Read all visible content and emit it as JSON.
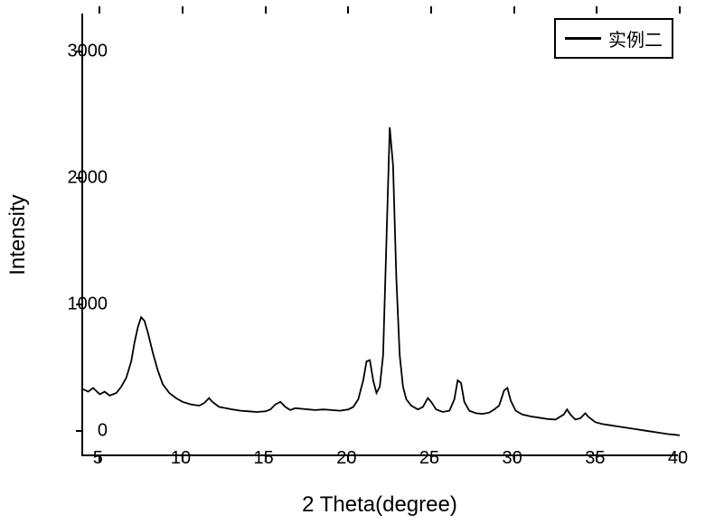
{
  "chart": {
    "type": "line",
    "background_color": "#ffffff",
    "line_color": "#000000",
    "line_width": 1.8,
    "border_color": "#000000",
    "x_axis": {
      "label": "2 Theta(degree)",
      "label_fontsize": 24,
      "tick_fontsize": 20,
      "xlim": [
        4,
        40
      ],
      "ticks": [
        5,
        10,
        15,
        20,
        25,
        30,
        35,
        40
      ]
    },
    "y_axis": {
      "label": "Intensity",
      "label_fontsize": 24,
      "tick_fontsize": 20,
      "ylim": [
        -200,
        3300
      ],
      "ticks": [
        0,
        1000,
        2000,
        3000
      ]
    },
    "legend": {
      "position": "top-right",
      "border_color": "#000000",
      "items": [
        {
          "label": "实例二",
          "color": "#000000"
        }
      ]
    },
    "series": [
      {
        "name": "实例二",
        "color": "#000000",
        "data": [
          [
            4.0,
            330
          ],
          [
            4.3,
            310
          ],
          [
            4.6,
            340
          ],
          [
            5.0,
            290
          ],
          [
            5.3,
            310
          ],
          [
            5.6,
            280
          ],
          [
            6.0,
            300
          ],
          [
            6.3,
            350
          ],
          [
            6.6,
            420
          ],
          [
            6.9,
            550
          ],
          [
            7.1,
            700
          ],
          [
            7.3,
            820
          ],
          [
            7.5,
            900
          ],
          [
            7.7,
            870
          ],
          [
            7.9,
            780
          ],
          [
            8.2,
            620
          ],
          [
            8.5,
            480
          ],
          [
            8.8,
            370
          ],
          [
            9.2,
            300
          ],
          [
            9.6,
            260
          ],
          [
            10.0,
            230
          ],
          [
            10.5,
            210
          ],
          [
            11.0,
            200
          ],
          [
            11.3,
            220
          ],
          [
            11.6,
            260
          ],
          [
            11.8,
            230
          ],
          [
            12.2,
            190
          ],
          [
            12.6,
            180
          ],
          [
            13.0,
            170
          ],
          [
            13.5,
            160
          ],
          [
            14.0,
            155
          ],
          [
            14.5,
            150
          ],
          [
            15.0,
            155
          ],
          [
            15.3,
            170
          ],
          [
            15.6,
            210
          ],
          [
            15.9,
            230
          ],
          [
            16.2,
            190
          ],
          [
            16.5,
            165
          ],
          [
            16.8,
            180
          ],
          [
            17.2,
            175
          ],
          [
            17.6,
            170
          ],
          [
            18.0,
            165
          ],
          [
            18.5,
            170
          ],
          [
            19.0,
            165
          ],
          [
            19.5,
            160
          ],
          [
            20.0,
            170
          ],
          [
            20.3,
            190
          ],
          [
            20.6,
            250
          ],
          [
            20.9,
            400
          ],
          [
            21.1,
            550
          ],
          [
            21.3,
            560
          ],
          [
            21.5,
            400
          ],
          [
            21.7,
            300
          ],
          [
            21.9,
            350
          ],
          [
            22.1,
            600
          ],
          [
            22.3,
            1500
          ],
          [
            22.5,
            2400
          ],
          [
            22.7,
            2100
          ],
          [
            22.9,
            1200
          ],
          [
            23.1,
            600
          ],
          [
            23.3,
            350
          ],
          [
            23.5,
            250
          ],
          [
            23.8,
            200
          ],
          [
            24.2,
            170
          ],
          [
            24.5,
            190
          ],
          [
            24.8,
            260
          ],
          [
            25.0,
            230
          ],
          [
            25.3,
            170
          ],
          [
            25.7,
            150
          ],
          [
            26.1,
            160
          ],
          [
            26.4,
            250
          ],
          [
            26.6,
            400
          ],
          [
            26.8,
            380
          ],
          [
            27.0,
            230
          ],
          [
            27.3,
            160
          ],
          [
            27.7,
            140
          ],
          [
            28.1,
            135
          ],
          [
            28.5,
            145
          ],
          [
            28.8,
            170
          ],
          [
            29.1,
            200
          ],
          [
            29.4,
            320
          ],
          [
            29.6,
            340
          ],
          [
            29.8,
            240
          ],
          [
            30.1,
            160
          ],
          [
            30.5,
            130
          ],
          [
            31.0,
            115
          ],
          [
            31.5,
            105
          ],
          [
            32.0,
            95
          ],
          [
            32.5,
            90
          ],
          [
            33.0,
            130
          ],
          [
            33.2,
            170
          ],
          [
            33.4,
            130
          ],
          [
            33.7,
            90
          ],
          [
            34.0,
            100
          ],
          [
            34.3,
            140
          ],
          [
            34.5,
            110
          ],
          [
            34.9,
            70
          ],
          [
            35.3,
            55
          ],
          [
            35.8,
            45
          ],
          [
            36.3,
            35
          ],
          [
            36.8,
            25
          ],
          [
            37.3,
            15
          ],
          [
            37.8,
            5
          ],
          [
            38.3,
            -5
          ],
          [
            38.8,
            -15
          ],
          [
            39.3,
            -25
          ],
          [
            39.7,
            -30
          ],
          [
            40.0,
            -35
          ]
        ]
      }
    ]
  }
}
